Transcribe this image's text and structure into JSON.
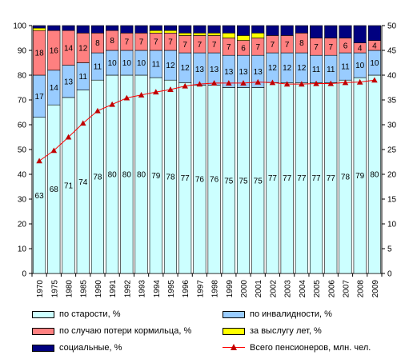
{
  "chart_data": {
    "type": "bar",
    "stacked": true,
    "categories": [
      "1970",
      "1975",
      "1980",
      "1985",
      "1990",
      "1991",
      "1992",
      "1993",
      "1994",
      "1995",
      "1996",
      "1997",
      "1998",
      "1999",
      "2000",
      "2001",
      "2002",
      "2003",
      "2004",
      "2005",
      "2006",
      "2007",
      "2008",
      "2009"
    ],
    "series": [
      {
        "name": "по старости, %",
        "color": "#ccffff",
        "values": [
          63,
          68,
          71,
          74,
          78,
          80,
          80,
          80,
          79,
          78,
          77,
          76,
          76,
          75,
          75,
          75,
          77,
          77,
          77,
          77,
          77,
          78,
          79,
          80
        ],
        "labels": [
          "63",
          "68",
          "71",
          "74",
          "78",
          "80",
          "80",
          "80",
          "79",
          "78",
          "77",
          "76",
          "76",
          "75",
          "75",
          "75",
          "77",
          "77",
          "77",
          "77",
          "77",
          "78",
          "79",
          "80"
        ]
      },
      {
        "name": "по инвалидности, %",
        "color": "#99ccff",
        "values": [
          17,
          14,
          13,
          11,
          11,
          10,
          10,
          10,
          11,
          12,
          12,
          13,
          13,
          13,
          13,
          13,
          12,
          12,
          12,
          11,
          11,
          11,
          10,
          10
        ],
        "labels": [
          "17",
          "14",
          "13",
          "11",
          "11",
          "10",
          "10",
          "10",
          "11",
          "12",
          "12",
          "13",
          "13",
          "13",
          "13",
          "13",
          "12",
          "12",
          "12",
          "11",
          "11",
          "11",
          "10",
          "10"
        ]
      },
      {
        "name": "по случаю потери кормильца, %",
        "color": "#ff8080",
        "values": [
          18,
          16,
          14,
          12,
          8,
          8,
          7,
          7,
          7,
          7,
          7,
          7,
          7,
          7,
          6,
          7,
          7,
          7,
          8,
          7,
          7,
          6,
          4,
          4
        ],
        "labels": [
          "18",
          "16",
          "14",
          "12",
          "8",
          "8",
          "7",
          "7",
          "7",
          "7",
          "7",
          "7",
          "7",
          "7",
          "6",
          "7",
          "7",
          "7",
          "8",
          "7",
          "7",
          "6",
          "4",
          "4"
        ]
      },
      {
        "name": "за выслугу лет, %",
        "color": "#ffff00",
        "values": [
          1,
          0,
          0,
          0,
          0,
          0,
          0,
          0,
          1,
          1,
          1,
          1,
          1,
          2,
          2,
          2,
          0,
          0,
          0,
          0,
          0,
          0,
          0,
          0
        ]
      },
      {
        "name": "социальные, %",
        "color": "#000080",
        "values": [
          1,
          2,
          2,
          3,
          3,
          2,
          3,
          3,
          2,
          2,
          3,
          3,
          3,
          3,
          4,
          3,
          4,
          4,
          3,
          5,
          5,
          5,
          7,
          6
        ]
      }
    ],
    "line": {
      "name": "Всего пенсионеров, млн. чел.",
      "color": "#ff0000",
      "marker_color": "#c00000",
      "values": [
        22.7,
        24.8,
        27.5,
        30.3,
        32.8,
        34.1,
        35.4,
        36.0,
        36.6,
        37.1,
        37.8,
        38.2,
        38.4,
        38.4,
        38.4,
        38.6,
        38.5,
        38.2,
        38.2,
        38.3,
        38.3,
        38.5,
        38.6,
        39.0
      ]
    },
    "y_left": {
      "min": 0,
      "max": 100,
      "step": 10,
      "ticks": [
        "0",
        "10",
        "20",
        "30",
        "40",
        "50",
        "60",
        "70",
        "80",
        "90",
        "100"
      ]
    },
    "y_right": {
      "min": 0,
      "max": 50,
      "step": 5,
      "ticks": [
        "0",
        "5",
        "10",
        "15",
        "20",
        "25",
        "30",
        "35",
        "40",
        "45",
        "50"
      ]
    },
    "title": "",
    "xlabel": "",
    "ylabel": "",
    "grid": false,
    "legend_position": "bottom"
  },
  "legend": {
    "old_age": "по старости, %",
    "disability": "по инвалидности, %",
    "survivor": "по случаю потери кормильца, %",
    "service": "за выслугу лет, %",
    "social": "социальные, %",
    "total": "Всего пенсионеров, млн. чел."
  }
}
